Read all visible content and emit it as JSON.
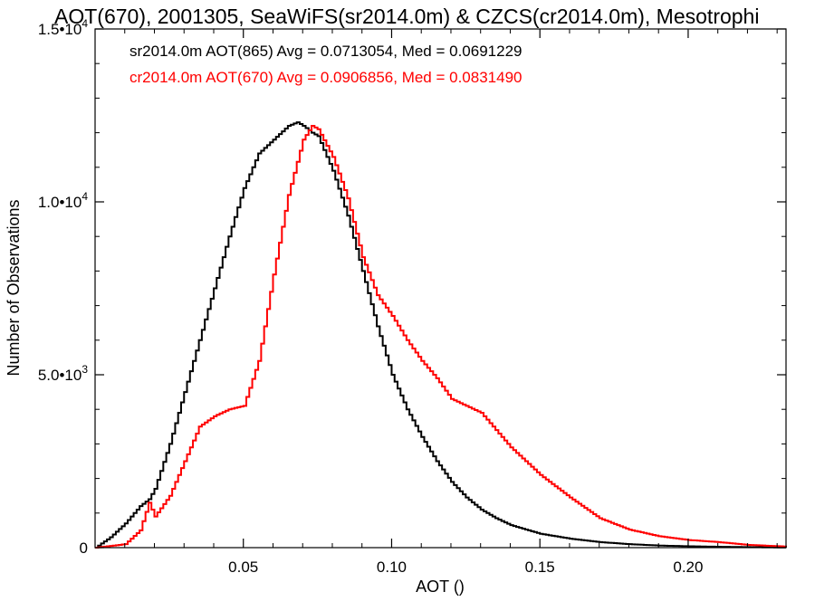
{
  "chart_data": {
    "type": "line",
    "title": "AOT(670), 2001305, SeaWiFS(sr2014.0m) & CZCS(cr2014.0m), Mesotrophi",
    "xlabel": "AOT ()",
    "ylabel": "Number of Observations",
    "xlim": [
      0.0,
      0.233
    ],
    "ylim": [
      0,
      15000
    ],
    "x_ticks": [
      0.05,
      0.1,
      0.15,
      0.2
    ],
    "x_tick_labels": [
      "0.05",
      "0.10",
      "0.15",
      "0.20"
    ],
    "y_ticks": [
      0,
      5000,
      10000,
      15000
    ],
    "y_tick_labels": [
      {
        "base": "0",
        "exp": ""
      },
      {
        "base": "5.0•10",
        "exp": "3"
      },
      {
        "base": "1.0•10",
        "exp": "4"
      },
      {
        "base": "1.5•10",
        "exp": "4"
      }
    ],
    "grid": false,
    "legend_position": "top-left",
    "annotations": [
      {
        "text": "sr2014.0m AOT(865) Avg = 0.0713054, Med = 0.0691229",
        "color": "#000000"
      },
      {
        "text": "cr2014.0m AOT(670) Avg = 0.0906856, Med = 0.0831490",
        "color": "#ff0000"
      }
    ],
    "series": [
      {
        "color": "#000000",
        "x": [
          0.0,
          0.005,
          0.01,
          0.015,
          0.018,
          0.02,
          0.025,
          0.03,
          0.035,
          0.04,
          0.045,
          0.05,
          0.055,
          0.06,
          0.065,
          0.068,
          0.07,
          0.073,
          0.075,
          0.08,
          0.085,
          0.09,
          0.095,
          0.1,
          0.105,
          0.11,
          0.115,
          0.12,
          0.125,
          0.13,
          0.135,
          0.14,
          0.15,
          0.16,
          0.17,
          0.18,
          0.19,
          0.2,
          0.21,
          0.22,
          0.233
        ],
        "y": [
          0,
          300,
          700,
          1200,
          1400,
          1700,
          3000,
          4500,
          6000,
          7500,
          9000,
          10400,
          11400,
          11800,
          12200,
          12300,
          12200,
          12000,
          11900,
          10900,
          9600,
          8000,
          6400,
          5000,
          4000,
          3200,
          2500,
          1900,
          1450,
          1100,
          850,
          650,
          400,
          260,
          160,
          100,
          60,
          40,
          25,
          15,
          5
        ]
      },
      {
        "color": "#ff0000",
        "x": [
          0.0,
          0.01,
          0.015,
          0.018,
          0.02,
          0.025,
          0.03,
          0.035,
          0.04,
          0.045,
          0.05,
          0.055,
          0.06,
          0.065,
          0.07,
          0.073,
          0.075,
          0.08,
          0.085,
          0.09,
          0.095,
          0.1,
          0.105,
          0.11,
          0.115,
          0.12,
          0.125,
          0.13,
          0.135,
          0.14,
          0.145,
          0.15,
          0.16,
          0.17,
          0.18,
          0.19,
          0.2,
          0.21,
          0.22,
          0.233
        ],
        "y": [
          0,
          100,
          500,
          1300,
          900,
          1500,
          2500,
          3500,
          3800,
          4000,
          4100,
          5400,
          7900,
          10200,
          11800,
          12200,
          12100,
          11300,
          10100,
          8400,
          7300,
          6700,
          6000,
          5400,
          4900,
          4300,
          4100,
          3900,
          3400,
          2900,
          2500,
          2100,
          1450,
          850,
          520,
          330,
          220,
          160,
          80,
          30
        ]
      }
    ]
  }
}
